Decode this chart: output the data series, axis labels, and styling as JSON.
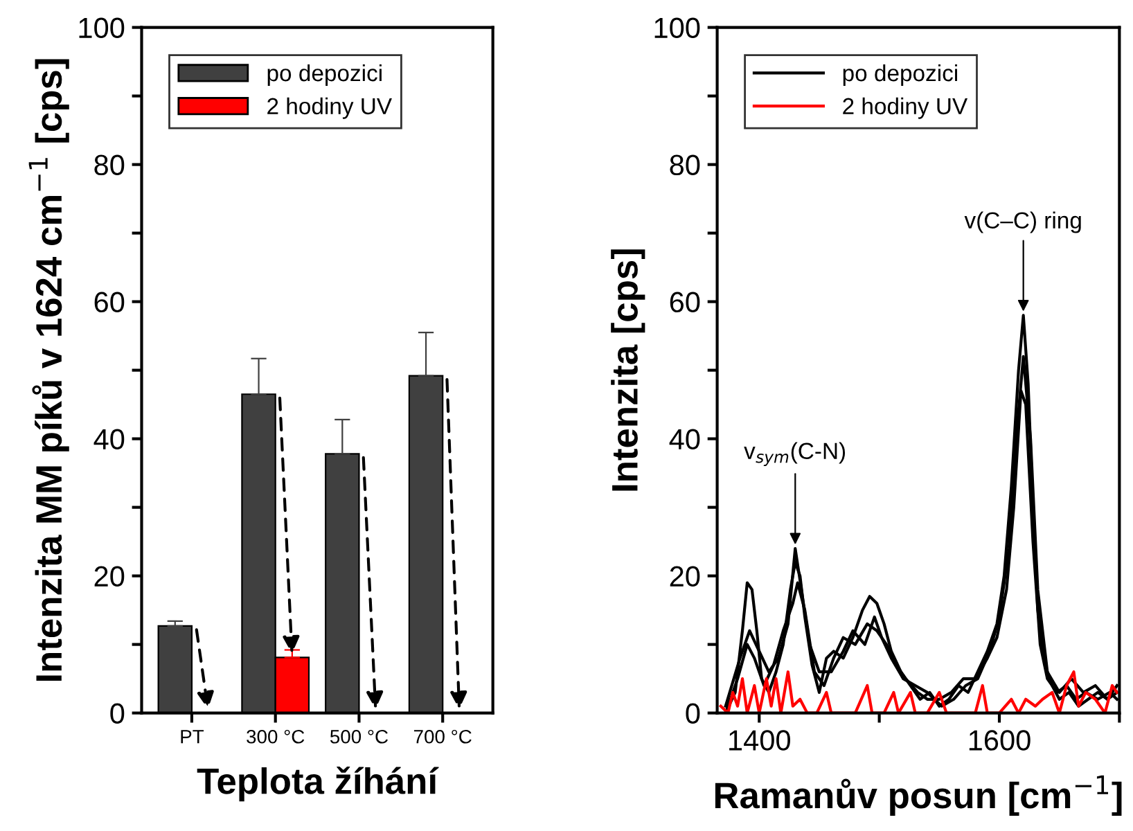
{
  "chart_data": [
    {
      "type": "bar",
      "xlabel": "Teplota žíhání",
      "ylabel": "Intenzita MM píků v 1624 cm$^{−1}$ [cps]",
      "categories": [
        "PT",
        "300 °C",
        "500 °C",
        "700 °C"
      ],
      "series": [
        {
          "name": "po depozici",
          "color": "#404040",
          "values": [
            12.7,
            46.5,
            37.8,
            49.2
          ],
          "errors": [
            0.7,
            5.2,
            5.0,
            6.3
          ]
        },
        {
          "name": "2 hodiny UV",
          "color": "#ff0000",
          "values": [
            null,
            8.1,
            null,
            null
          ],
          "errors": [
            null,
            1.1,
            null,
            null
          ]
        }
      ],
      "ylim": [
        0,
        100
      ],
      "yticks": [
        0,
        {
          "value": 10,
          "label": null
        },
        20,
        {
          "value": 30,
          "label": null
        },
        40,
        {
          "value": 50,
          "label": null
        },
        60,
        {
          "value": 70,
          "label": null
        },
        80,
        {
          "value": 90,
          "label": null
        },
        100
      ],
      "legend": "top left",
      "grid": false
    },
    {
      "type": "line",
      "xlabel": "Ramanův posun [cm$^{−1}$]",
      "ylabel": "Intenzita [cps]",
      "series": [
        {
          "name": "po depozici",
          "color": "#000000",
          "x": [
            1372,
            1380,
            1386,
            1390,
            1394,
            1398,
            1402,
            1408,
            1414,
            1420,
            1426,
            1430,
            1434,
            1438,
            1444,
            1450,
            1456,
            1462,
            1470,
            1478,
            1486,
            1492,
            1498,
            1504,
            1510,
            1518,
            1526,
            1534,
            1542,
            1550,
            1558,
            1566,
            1574,
            1582,
            1590,
            1598,
            1604,
            1610,
            1616,
            1620,
            1624,
            1628,
            1632,
            1638,
            1644,
            1650,
            1658,
            1666,
            1674,
            1682,
            1690,
            1698
          ],
          "values": [
            0,
            3,
            12,
            19,
            18,
            12,
            5,
            3,
            6,
            10,
            18,
            22,
            20,
            14,
            7,
            3,
            8,
            9,
            8,
            11,
            15,
            17,
            16,
            13,
            9,
            6,
            4,
            2,
            3,
            1,
            2,
            4,
            3,
            6,
            9,
            13,
            20,
            33,
            50,
            58,
            48,
            30,
            15,
            7,
            4,
            2,
            3,
            1,
            2,
            3,
            2,
            3
          ]
        },
        {
          "color": "#000000",
          "x": [
            1372,
            1382,
            1390,
            1396,
            1404,
            1412,
            1420,
            1428,
            1432,
            1438,
            1446,
            1454,
            1462,
            1470,
            1480,
            1490,
            1498,
            1506,
            1514,
            1522,
            1532,
            1540,
            1550,
            1560,
            1570,
            1580,
            1590,
            1598,
            1606,
            1612,
            1618,
            1622,
            1628,
            1634,
            1640,
            1648,
            1656,
            1664,
            1672,
            1682,
            1692,
            1698
          ],
          "values": [
            0,
            5,
            10,
            8,
            4,
            7,
            12,
            16,
            19,
            15,
            6,
            4,
            8,
            11,
            10,
            13,
            12,
            10,
            7,
            5,
            3,
            2,
            2,
            3,
            5,
            5,
            8,
            11,
            18,
            30,
            47,
            45,
            25,
            10,
            5,
            3,
            4,
            2,
            3,
            2,
            3,
            2
          ]
        },
        {
          "color": "#000000",
          "x": [
            1372,
            1384,
            1392,
            1400,
            1408,
            1416,
            1424,
            1430,
            1436,
            1442,
            1450,
            1460,
            1470,
            1478,
            1488,
            1496,
            1502,
            1510,
            1520,
            1530,
            1540,
            1552,
            1562,
            1572,
            1582,
            1592,
            1600,
            1608,
            1614,
            1620,
            1626,
            1632,
            1640,
            1650,
            1660,
            1670,
            1680,
            1690,
            1698
          ],
          "values": [
            1,
            8,
            12,
            9,
            6,
            8,
            13,
            24,
            17,
            10,
            6,
            6,
            9,
            12,
            10,
            14,
            11,
            8,
            5,
            4,
            3,
            1,
            2,
            4,
            5,
            9,
            14,
            24,
            40,
            52,
            40,
            18,
            6,
            3,
            5,
            3,
            4,
            2,
            4
          ]
        },
        {
          "name": "2 hodiny UV",
          "color": "#ff0000",
          "x": [
            1368,
            1374,
            1378,
            1382,
            1386,
            1390,
            1396,
            1400,
            1406,
            1410,
            1414,
            1418,
            1424,
            1428,
            1434,
            1440,
            1448,
            1456,
            1460,
            1470,
            1480,
            1490,
            1494,
            1504,
            1512,
            1516,
            1526,
            1530,
            1540,
            1550,
            1556,
            1566,
            1580,
            1586,
            1590,
            1600,
            1610,
            1616,
            1622,
            1630,
            1636,
            1644,
            1650,
            1656,
            1662,
            1666,
            1672,
            1680,
            1688,
            1694,
            1698
          ],
          "values": [
            1,
            0,
            3,
            1,
            5,
            0,
            4,
            0,
            5,
            1,
            5,
            0,
            6,
            1,
            2,
            0,
            0,
            3,
            0,
            0,
            0,
            4,
            0,
            0,
            3,
            0,
            3,
            0,
            0,
            3,
            0,
            0,
            0,
            4,
            0,
            0,
            2,
            0,
            2,
            1,
            2,
            3,
            0,
            4,
            6,
            1,
            3,
            2,
            0,
            4,
            3
          ]
        }
      ],
      "xlim": [
        1365,
        1700
      ],
      "xticks": [
        1400,
        {
          "value": 1500,
          "label": null
        },
        1600,
        {
          "value": 1700,
          "label": null
        }
      ],
      "ylim": [
        0,
        100
      ],
      "yticks": [
        0,
        {
          "value": 10,
          "label": null
        },
        20,
        {
          "value": 30,
          "label": null
        },
        40,
        {
          "value": 50,
          "label": null
        },
        60,
        {
          "value": 70,
          "label": null
        },
        80,
        {
          "value": 90,
          "label": null
        },
        100
      ],
      "annotations": [
        {
          "text": "v$_{sym}$(C-N)",
          "x": 1430,
          "y": 24
        },
        {
          "text": "v(C–C) ring",
          "x": 1620,
          "y": 58
        }
      ],
      "legend": "top left",
      "grid": false,
      "line_style": "solid",
      "marker": "none"
    }
  ]
}
